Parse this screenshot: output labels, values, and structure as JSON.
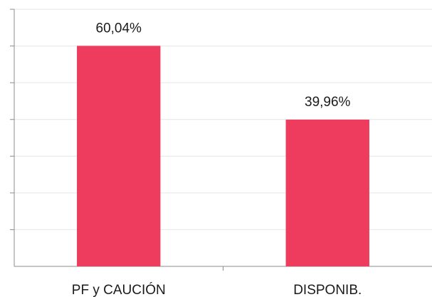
{
  "chart_data": {
    "type": "bar",
    "categories": [
      "PF y CAUCIÓN",
      "DISPONIB."
    ],
    "values": [
      60.04,
      39.96
    ],
    "data_labels": [
      "60,04%",
      "39,96%"
    ],
    "ylim": [
      0,
      70
    ],
    "y_tick_step": 10,
    "grid": true,
    "legend": "none",
    "bar_color": "#EE3C5E",
    "gridline_color": "#e6e6e6",
    "axis_color": "#8c8c8c"
  }
}
